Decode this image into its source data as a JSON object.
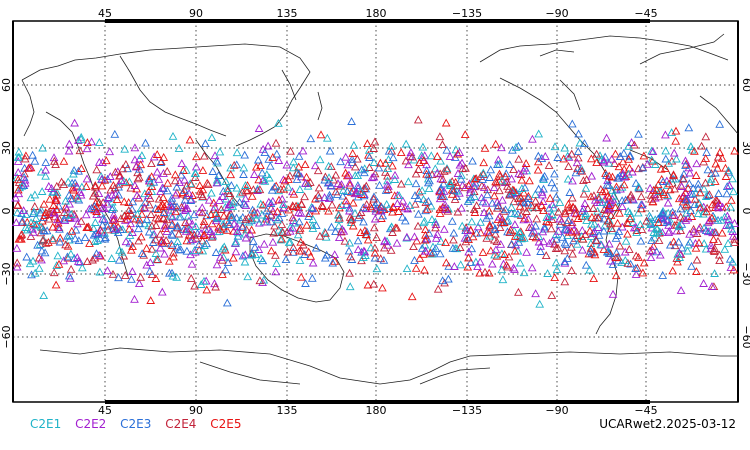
{
  "top_ticks": [
    "45",
    "90",
    "135",
    "180",
    "−135",
    "−90",
    "−45"
  ],
  "bottom_ticks": [
    "45",
    "90",
    "135",
    "180",
    "−135",
    "−90",
    "−45"
  ],
  "left_ticks": [
    "60",
    "30",
    "0",
    "−30",
    "−60"
  ],
  "right_ticks": [
    "60",
    "30",
    "0",
    "−30",
    "−60"
  ],
  "legend": [
    {
      "label": "C2E1",
      "color": "#1fb3c8"
    },
    {
      "label": "C2E2",
      "color": "#a21fd0"
    },
    {
      "label": "C2E3",
      "color": "#2a6fd8"
    },
    {
      "label": "C2E4",
      "color": "#c2233a"
    },
    {
      "label": "C2E5",
      "color": "#e81313"
    }
  ],
  "source_label": "UCARwet2.2025-03-12",
  "marker": "triangle-outline"
}
